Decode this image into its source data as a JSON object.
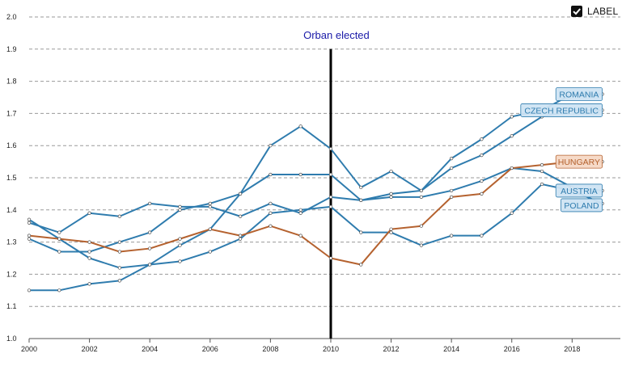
{
  "label_toggle": {
    "text": "LABEL",
    "checked": true
  },
  "chart_data": {
    "type": "line",
    "title": "",
    "xlabel": "",
    "ylabel": "",
    "x": [
      2000,
      2001,
      2002,
      2003,
      2004,
      2005,
      2006,
      2007,
      2008,
      2009,
      2010,
      2011,
      2012,
      2013,
      2014,
      2015,
      2016,
      2017,
      2018,
      2019
    ],
    "xlim": [
      2000,
      2019.6
    ],
    "ylim": [
      1.0,
      2.0
    ],
    "x_ticks": [
      2000,
      2002,
      2004,
      2006,
      2008,
      2010,
      2012,
      2014,
      2016,
      2018
    ],
    "y_ticks": [
      "1.0",
      "1.1",
      "1.2",
      "1.3",
      "1.4",
      "1.5",
      "1.6",
      "1.7",
      "1.8",
      "1.9",
      "2.0"
    ],
    "grid": "horizontal dashed",
    "annotation": {
      "text": "Orban elected",
      "x": 2010,
      "color": "#1a1aa8"
    },
    "colors": {
      "highlight": "#b5622f",
      "others": "#2f7cae"
    },
    "series": [
      {
        "name": "ROMANIA",
        "highlight": false,
        "values": [
          1.31,
          1.27,
          1.27,
          1.3,
          1.33,
          1.4,
          1.42,
          1.45,
          1.6,
          1.66,
          1.59,
          1.47,
          1.52,
          1.46,
          1.56,
          1.62,
          1.69,
          1.71,
          1.76,
          1.76
        ]
      },
      {
        "name": "CZECH REPUBLIC",
        "highlight": false,
        "values": [
          1.15,
          1.15,
          1.17,
          1.18,
          1.23,
          1.29,
          1.34,
          1.45,
          1.51,
          1.51,
          1.51,
          1.43,
          1.45,
          1.46,
          1.53,
          1.57,
          1.63,
          1.69,
          1.71,
          1.71
        ]
      },
      {
        "name": "HUNGARY",
        "highlight": true,
        "values": [
          1.32,
          1.31,
          1.3,
          1.27,
          1.28,
          1.31,
          1.34,
          1.32,
          1.35,
          1.32,
          1.25,
          1.23,
          1.34,
          1.35,
          1.44,
          1.45,
          1.53,
          1.54,
          1.55,
          1.55
        ]
      },
      {
        "name": "AUSTRIA",
        "highlight": false,
        "values": [
          1.36,
          1.33,
          1.39,
          1.38,
          1.42,
          1.41,
          1.41,
          1.38,
          1.42,
          1.39,
          1.44,
          1.43,
          1.44,
          1.44,
          1.46,
          1.49,
          1.53,
          1.52,
          1.47,
          1.46
        ]
      },
      {
        "name": "POLAND",
        "highlight": false,
        "values": [
          1.37,
          1.31,
          1.25,
          1.22,
          1.23,
          1.24,
          1.27,
          1.31,
          1.39,
          1.4,
          1.41,
          1.33,
          1.33,
          1.29,
          1.32,
          1.32,
          1.39,
          1.48,
          1.46,
          1.42
        ]
      }
    ]
  }
}
